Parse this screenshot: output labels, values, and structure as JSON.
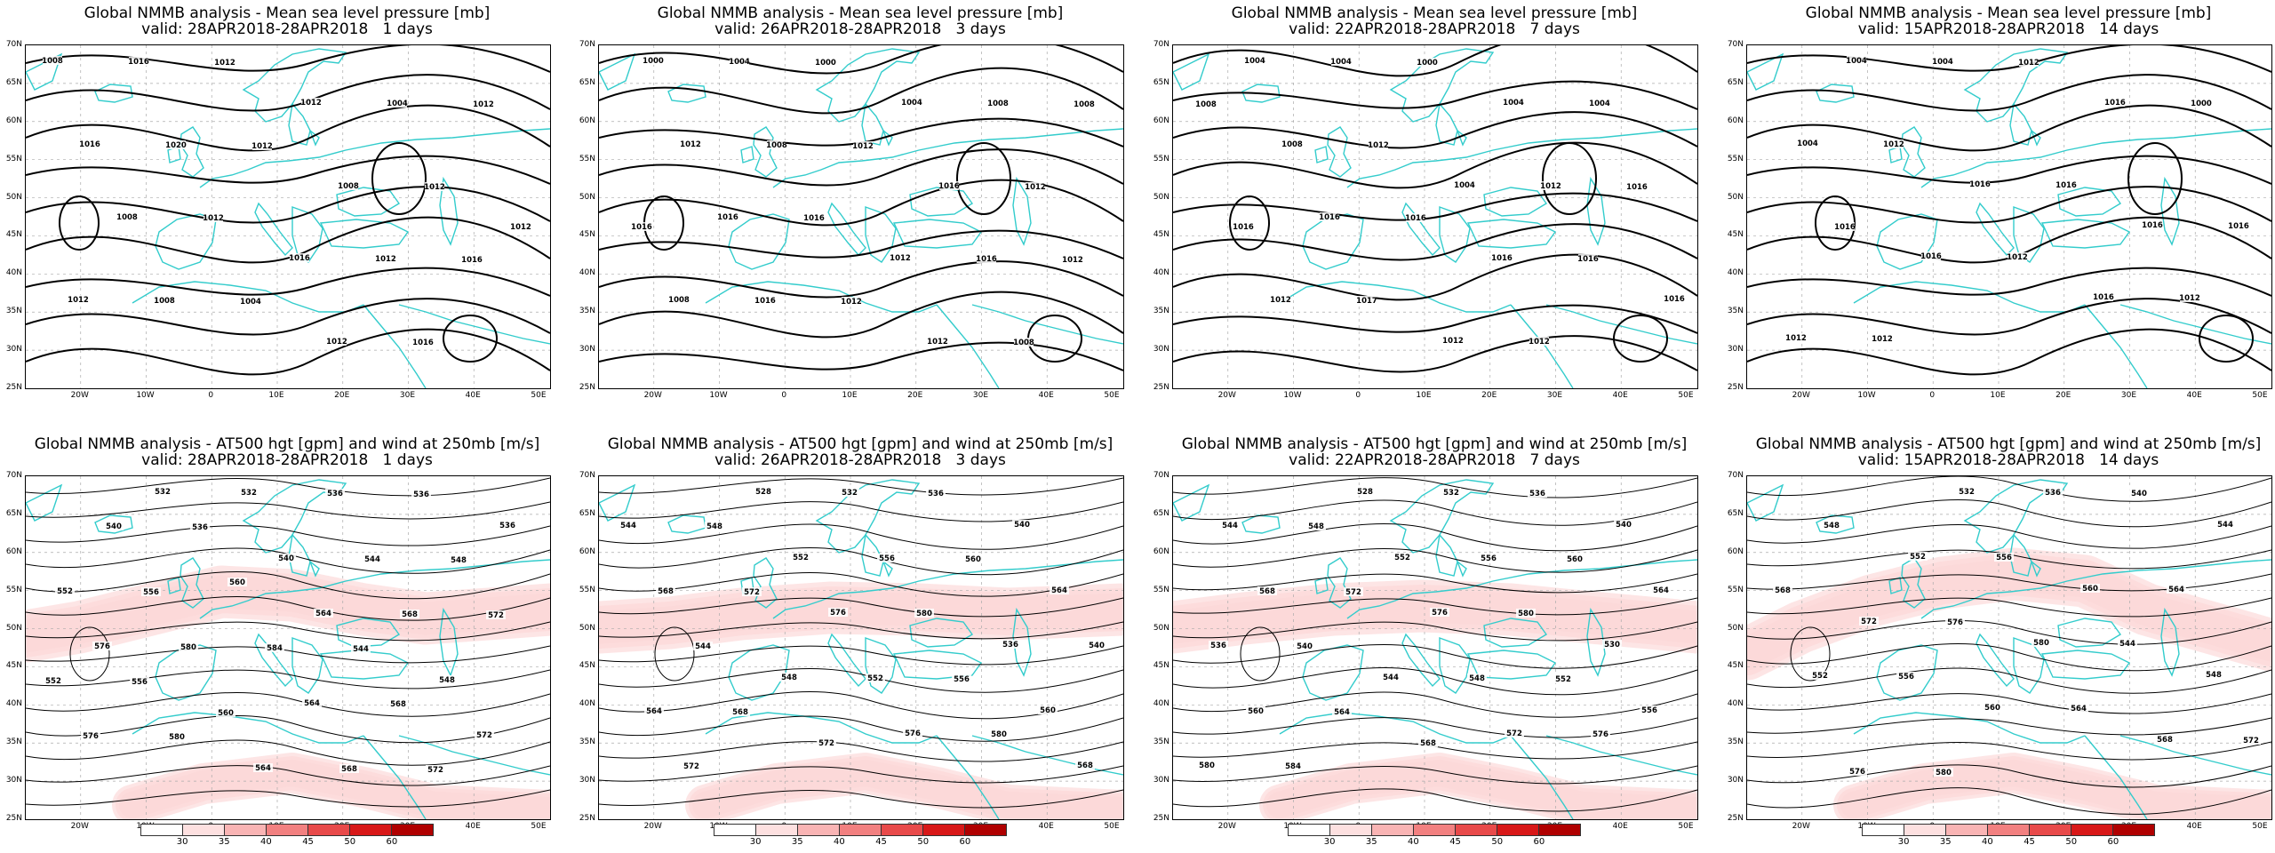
{
  "panels": [
    {
      "id": "mslp-1",
      "t1": "Global NMMB analysis - Mean sea level pressure [mb]",
      "t2": "valid: 28APR2018-28APR2018   1 days",
      "kind": "mslp",
      "contour_labels": [
        "1008",
        "1016",
        "1012",
        "1012",
        "1004",
        "1012",
        "1016",
        "1020",
        "1012",
        "1008",
        "1012",
        "1012",
        "1008",
        "1012",
        "1016",
        "1012",
        "1016",
        "1012",
        "1008",
        "1004",
        "1012",
        "1016"
      ]
    },
    {
      "id": "mslp-3",
      "t1": "Global NMMB analysis - Mean sea level pressure [mb]",
      "t2": "valid: 26APR2018-28APR2018   3 days",
      "kind": "mslp",
      "contour_labels": [
        "1000",
        "1004",
        "1000",
        "1004",
        "1008",
        "1008",
        "1012",
        "1008",
        "1012",
        "1016",
        "1012",
        "1016",
        "1016",
        "1016",
        "1012",
        "1016",
        "1012",
        "1008",
        "1016",
        "1012",
        "1012",
        "1008"
      ]
    },
    {
      "id": "mslp-7",
      "t1": "Global NMMB analysis - Mean sea level pressure [mb]",
      "t2": "valid: 22APR2018-28APR2018   7 days",
      "kind": "mslp",
      "contour_labels": [
        "1004",
        "1004",
        "1000",
        "1004",
        "1004",
        "1008",
        "1008",
        "1012",
        "1004",
        "1012",
        "1016",
        "1016",
        "1016",
        "1016",
        "1016",
        "1016",
        "1016",
        "1012",
        "1017",
        "1012",
        "1012"
      ]
    },
    {
      "id": "mslp-14",
      "t1": "Global NMMB analysis - Mean sea level pressure [mb]",
      "t2": "valid: 15APR2018-28APR2018   14 days",
      "kind": "mslp",
      "contour_labels": [
        "1004",
        "1004",
        "1012",
        "1016",
        "1000",
        "1004",
        "1012",
        "1016",
        "1016",
        "1016",
        "1016",
        "1016",
        "1016",
        "1012",
        "1016",
        "1012",
        "1012",
        "1012"
      ]
    },
    {
      "id": "z500-1",
      "t1": "Global NMMB analysis - AT500 hgt [gpm] and wind at 250mb [m/s]",
      "t2": "valid: 28APR2018-28APR2018   1 days",
      "kind": "z500",
      "contour_labels": [
        "532",
        "532",
        "536",
        "536",
        "536",
        "540",
        "536",
        "540",
        "544",
        "548",
        "552",
        "556",
        "560",
        "564",
        "568",
        "572",
        "576",
        "580",
        "584",
        "544",
        "548",
        "552",
        "556",
        "560",
        "564",
        "568",
        "572",
        "576",
        "580",
        "564",
        "568",
        "572"
      ]
    },
    {
      "id": "z500-3",
      "t1": "Global NMMB analysis - AT500 hgt [gpm] and wind at 250mb [m/s]",
      "t2": "valid: 26APR2018-28APR2018   3 days",
      "kind": "z500",
      "contour_labels": [
        "528",
        "532",
        "536",
        "540",
        "544",
        "548",
        "552",
        "556",
        "560",
        "564",
        "568",
        "572",
        "576",
        "580",
        "536",
        "540",
        "544",
        "548",
        "552",
        "556",
        "560",
        "564",
        "568",
        "572",
        "576",
        "580",
        "568",
        "572"
      ]
    },
    {
      "id": "z500-7",
      "t1": "Global NMMB analysis - AT500 hgt [gpm] and wind at 250mb [m/s]",
      "t2": "valid: 22APR2018-28APR2018   7 days",
      "kind": "z500",
      "contour_labels": [
        "528",
        "532",
        "536",
        "540",
        "544",
        "548",
        "552",
        "556",
        "560",
        "564",
        "568",
        "572",
        "576",
        "580",
        "530",
        "536",
        "540",
        "544",
        "548",
        "552",
        "556",
        "560",
        "564",
        "568",
        "572",
        "576",
        "580",
        "584"
      ]
    },
    {
      "id": "z500-14",
      "t1": "Global NMMB analysis - AT500 hgt [gpm] and wind at 250mb [m/s]",
      "t2": "valid: 15APR2018-28APR2018   14 days",
      "kind": "z500",
      "contour_labels": [
        "532",
        "536",
        "540",
        "544",
        "548",
        "552",
        "556",
        "560",
        "564",
        "568",
        "572",
        "576",
        "580",
        "544",
        "548",
        "552",
        "556",
        "560",
        "564",
        "568",
        "572",
        "576",
        "580"
      ]
    }
  ],
  "lat_labels": [
    "70N",
    "65N",
    "60N",
    "55N",
    "50N",
    "45N",
    "40N",
    "35N",
    "30N",
    "25N"
  ],
  "lon_labels": [
    "20W",
    "10W",
    "0",
    "10E",
    "20E",
    "30E",
    "40E",
    "50E"
  ],
  "colorbar": {
    "ticks": [
      "30",
      "35",
      "40",
      "45",
      "50",
      "60"
    ],
    "colors": [
      "#ffffff",
      "#fde0e0",
      "#f9b4b4",
      "#f28080",
      "#e84a4a",
      "#d81818",
      "#b00000"
    ]
  },
  "colors": {
    "coast": "#33cccc",
    "contour": "#000000",
    "grid": "#aaaaaa"
  }
}
